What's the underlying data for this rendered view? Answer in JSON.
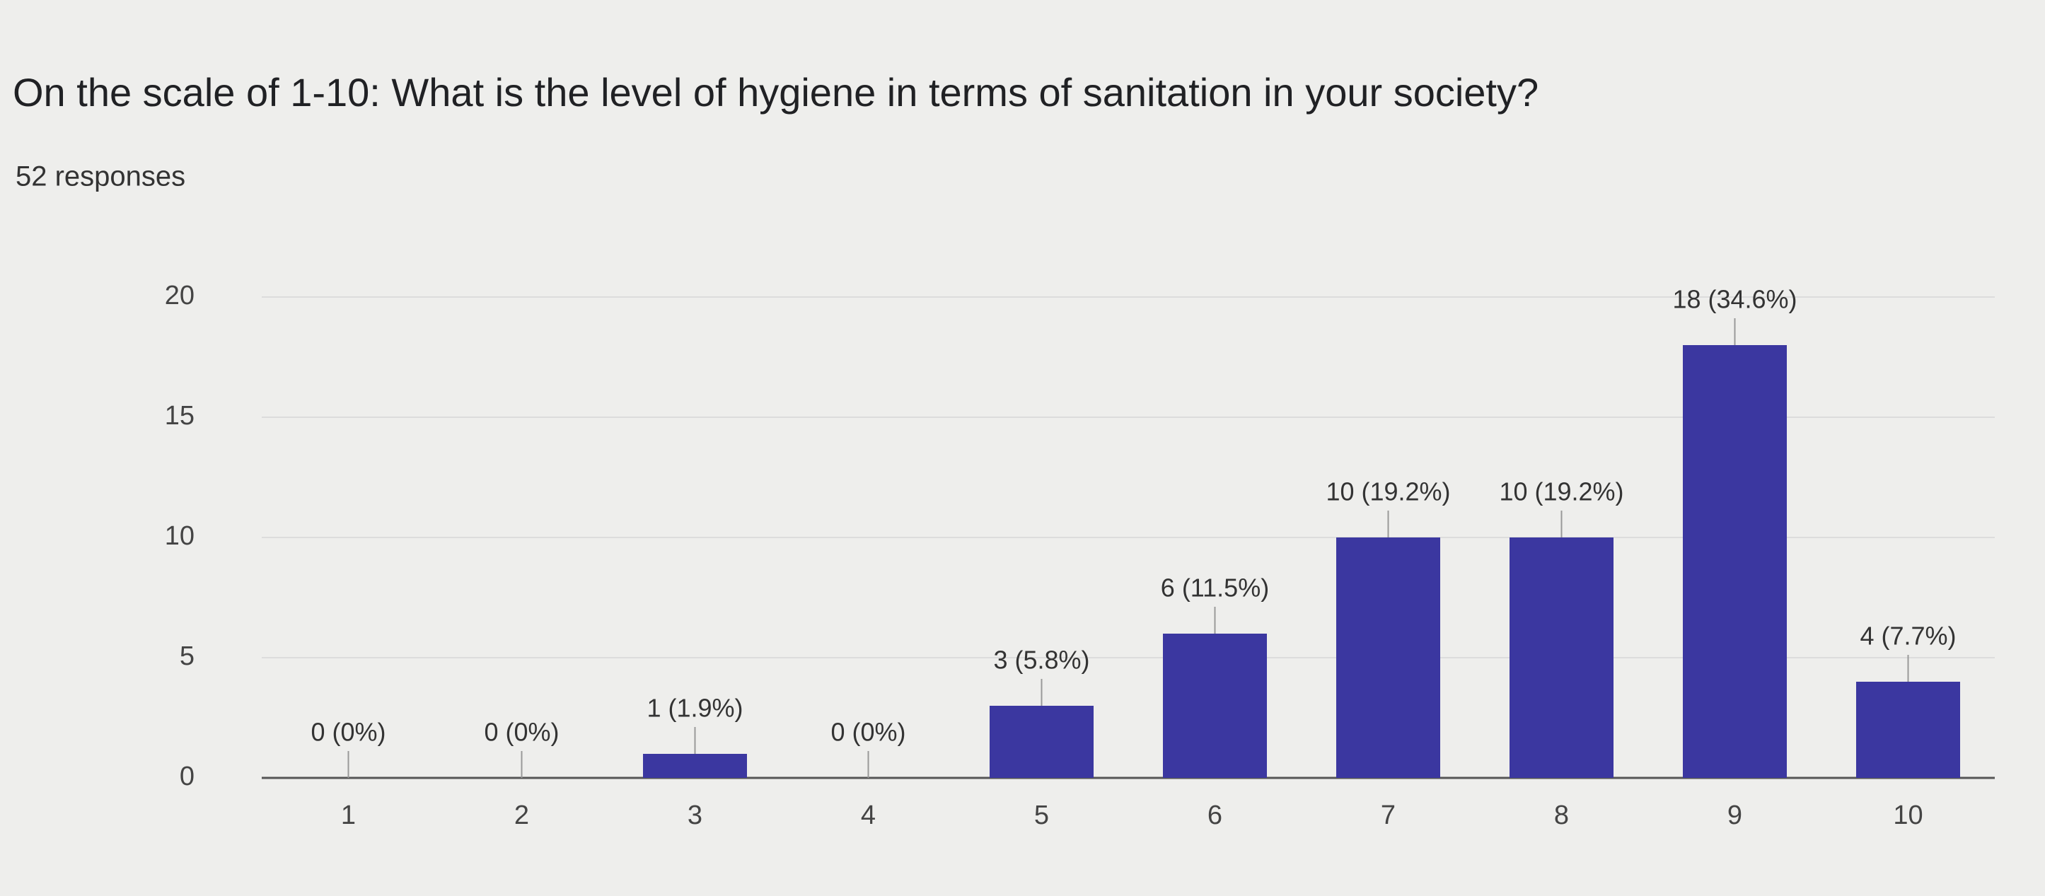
{
  "chart_data": {
    "type": "bar",
    "title": "On the scale of 1-10: What is the level of hygiene in terms of sanitation in your society?",
    "subtitle": "52 responses",
    "categories": [
      "1",
      "2",
      "3",
      "4",
      "5",
      "6",
      "7",
      "8",
      "9",
      "10"
    ],
    "values": [
      0,
      0,
      1,
      0,
      3,
      6,
      10,
      10,
      18,
      4
    ],
    "value_labels": [
      "0 (0%)",
      "0 (0%)",
      "1 (1.9%)",
      "0 (0%)",
      "3 (5.8%)",
      "6 (11.5%)",
      "10 (19.2%)",
      "10 (19.2%)",
      "18 (34.6%)",
      "4 (7.7%)"
    ],
    "color": "#3b37a0",
    "ylim": [
      0,
      20
    ],
    "yticks": [
      0,
      5,
      10,
      15,
      20
    ],
    "grid": true
  }
}
